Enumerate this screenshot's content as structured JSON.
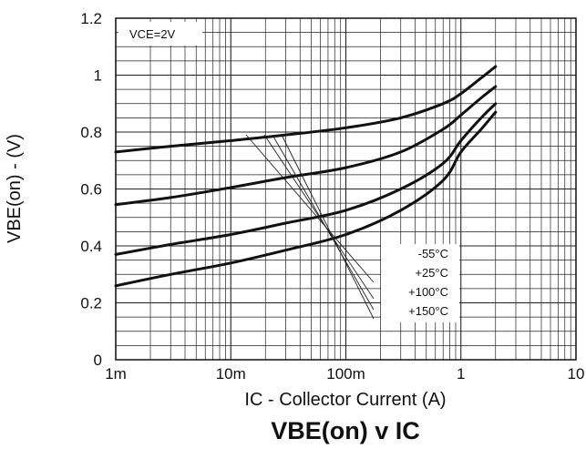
{
  "chart_data": {
    "type": "line",
    "title": "VBE(on) v IC",
    "xlabel": "IC - Collector Current (A)",
    "ylabel": "VBE(on) - (V)",
    "x_scale": "log",
    "xlim": [
      0.001,
      10
    ],
    "ylim": [
      0,
      1.2
    ],
    "x_ticks": [
      {
        "value": 0.001,
        "label": "1m"
      },
      {
        "value": 0.01,
        "label": "10m"
      },
      {
        "value": 0.1,
        "label": "100m"
      },
      {
        "value": 1,
        "label": "1"
      },
      {
        "value": 10,
        "label": "10"
      }
    ],
    "y_ticks": [
      {
        "value": 0,
        "label": "0"
      },
      {
        "value": 0.2,
        "label": "0.2"
      },
      {
        "value": 0.4,
        "label": "0.4"
      },
      {
        "value": 0.6,
        "label": "0.6"
      },
      {
        "value": 0.8,
        "label": "0.8"
      },
      {
        "value": 1,
        "label": "1"
      },
      {
        "value": 1.2,
        "label": "1.2"
      }
    ],
    "grid": true,
    "condition": "VCE=2V",
    "series": [
      {
        "name": "-55°C",
        "points": [
          [
            0.001,
            0.73
          ],
          [
            0.003,
            0.75
          ],
          [
            0.01,
            0.77
          ],
          [
            0.03,
            0.79
          ],
          [
            0.1,
            0.815
          ],
          [
            0.3,
            0.85
          ],
          [
            0.7,
            0.9
          ],
          [
            1,
            0.935
          ],
          [
            1.5,
            0.99
          ],
          [
            2,
            1.03
          ]
        ]
      },
      {
        "name": "+25°C",
        "points": [
          [
            0.001,
            0.545
          ],
          [
            0.003,
            0.57
          ],
          [
            0.01,
            0.605
          ],
          [
            0.03,
            0.64
          ],
          [
            0.1,
            0.675
          ],
          [
            0.3,
            0.73
          ],
          [
            0.7,
            0.81
          ],
          [
            1,
            0.86
          ],
          [
            1.5,
            0.92
          ],
          [
            2,
            0.96
          ]
        ]
      },
      {
        "name": "+100°C",
        "points": [
          [
            0.001,
            0.37
          ],
          [
            0.003,
            0.405
          ],
          [
            0.01,
            0.44
          ],
          [
            0.03,
            0.48
          ],
          [
            0.1,
            0.525
          ],
          [
            0.3,
            0.6
          ],
          [
            0.7,
            0.69
          ],
          [
            1,
            0.77
          ],
          [
            1.5,
            0.85
          ],
          [
            2,
            0.9
          ]
        ]
      },
      {
        "name": "+150°C",
        "points": [
          [
            0.001,
            0.26
          ],
          [
            0.003,
            0.3
          ],
          [
            0.01,
            0.34
          ],
          [
            0.03,
            0.385
          ],
          [
            0.1,
            0.44
          ],
          [
            0.3,
            0.525
          ],
          [
            0.7,
            0.63
          ],
          [
            1,
            0.73
          ],
          [
            1.5,
            0.81
          ],
          [
            2,
            0.87
          ]
        ]
      }
    ],
    "legend_position": "lower-middle",
    "legend_order": [
      "-55°C",
      "+25°C",
      "+100°C",
      "+150°C"
    ]
  }
}
